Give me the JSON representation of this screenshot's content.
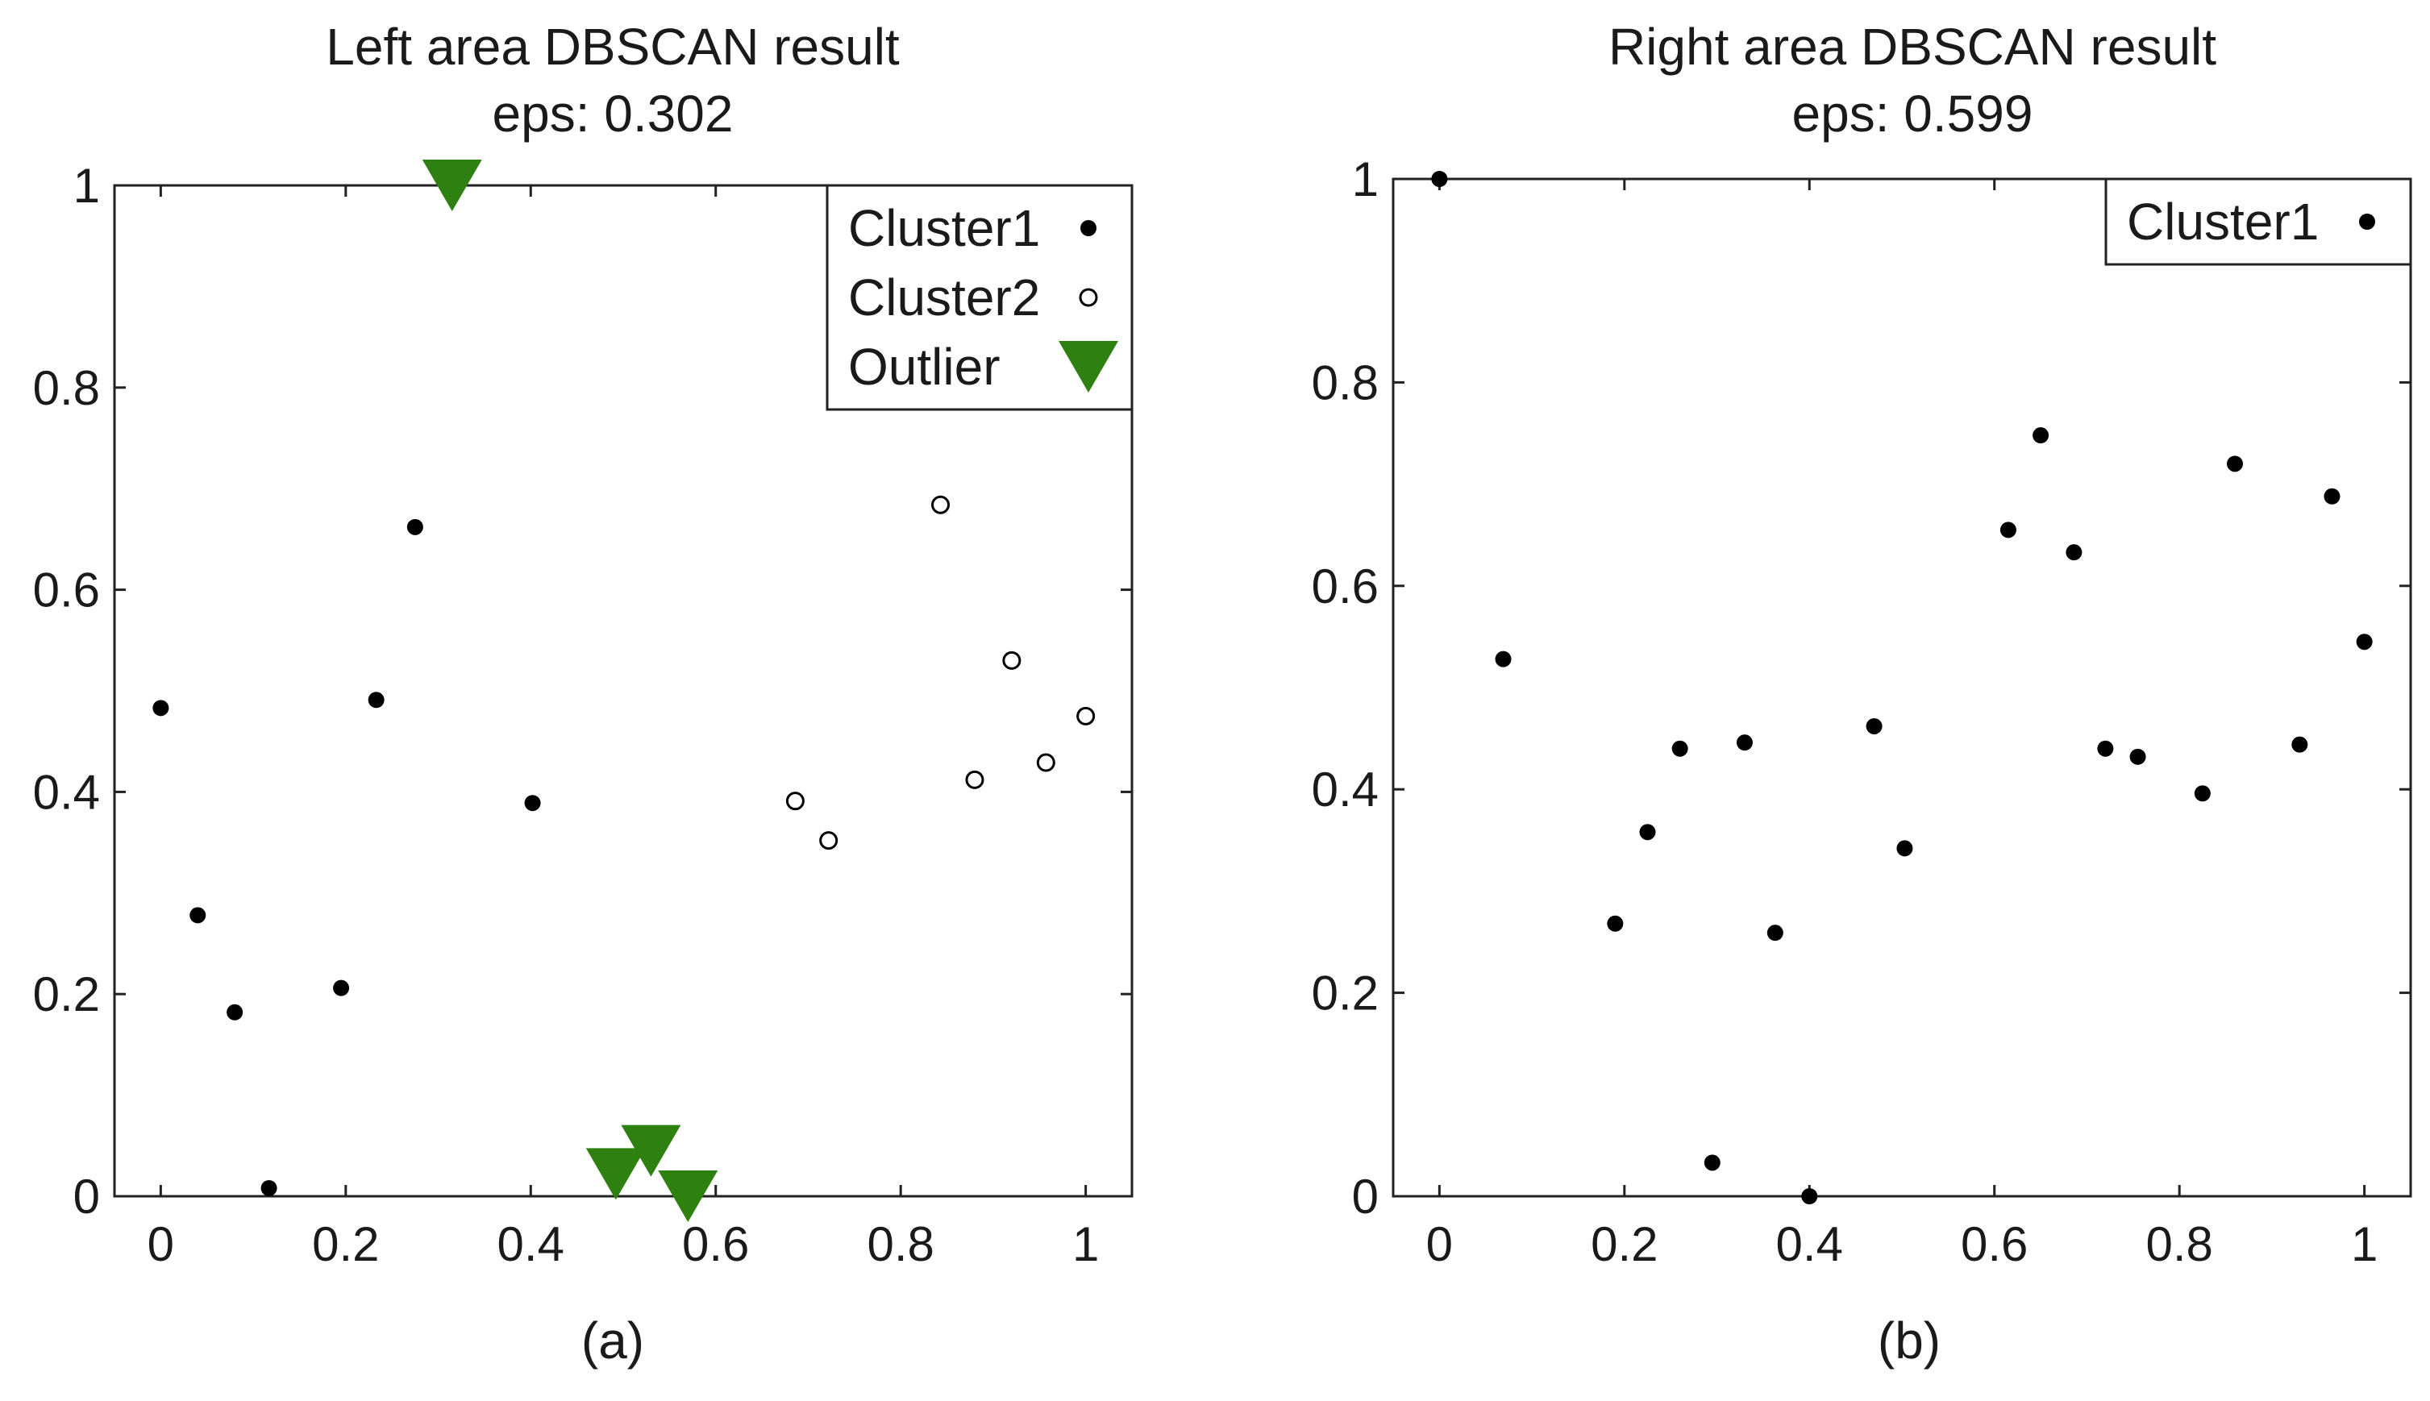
{
  "chart_data": [
    {
      "type": "scatter",
      "title_line1": "Left area DBSCAN result",
      "title_line2": "eps: 0.302",
      "caption": "(a)",
      "xlim": [
        -0.05,
        1.05
      ],
      "ylim": [
        0,
        1
      ],
      "xticks": [
        0,
        0.2,
        0.4,
        0.6,
        0.8,
        1
      ],
      "xtick_labels": [
        "0",
        "0.2",
        "0.4",
        "0.6",
        "0.8",
        "1"
      ],
      "yticks": [
        0,
        0.2,
        0.4,
        0.6,
        0.8,
        1
      ],
      "ytick_labels": [
        "0",
        "0.2",
        "0.4",
        "0.6",
        "0.8",
        "1"
      ],
      "legend_position": "top-right",
      "series": [
        {
          "name": "Cluster1",
          "marker": "filled-circle",
          "color": "#000000",
          "points": [
            [
              0.0,
              0.483
            ],
            [
              0.04,
              0.278
            ],
            [
              0.08,
              0.182
            ],
            [
              0.117,
              0.008
            ],
            [
              0.195,
              0.206
            ],
            [
              0.233,
              0.491
            ],
            [
              0.275,
              0.662
            ],
            [
              0.402,
              0.389
            ]
          ]
        },
        {
          "name": "Cluster2",
          "marker": "open-circle",
          "color": "#000000",
          "points": [
            [
              0.686,
              0.391
            ],
            [
              0.722,
              0.352
            ],
            [
              0.843,
              0.684
            ],
            [
              0.88,
              0.412
            ],
            [
              0.92,
              0.53
            ],
            [
              0.957,
              0.429
            ],
            [
              1.0,
              0.475
            ]
          ]
        },
        {
          "name": "Outlier",
          "marker": "triangle-down",
          "color": "#2e8010",
          "points": [
            [
              0.315,
              1.0
            ],
            [
              0.492,
              0.022
            ],
            [
              0.53,
              0.045
            ],
            [
              0.57,
              0.0
            ]
          ]
        }
      ]
    },
    {
      "type": "scatter",
      "title_line1": "Right area DBSCAN result",
      "title_line2": "eps: 0.599",
      "caption": "(b)",
      "xlim": [
        -0.05,
        1.05
      ],
      "ylim": [
        0,
        1
      ],
      "xticks": [
        0,
        0.2,
        0.4,
        0.6,
        0.8,
        1
      ],
      "xtick_labels": [
        "0",
        "0.2",
        "0.4",
        "0.6",
        "0.8",
        "1"
      ],
      "yticks": [
        0,
        0.2,
        0.4,
        0.6,
        0.8,
        1
      ],
      "ytick_labels": [
        "0",
        "0.2",
        "0.4",
        "0.6",
        "0.8",
        "1"
      ],
      "legend_position": "top-right",
      "series": [
        {
          "name": "Cluster1",
          "marker": "filled-circle",
          "color": "#000000",
          "points": [
            [
              0.0,
              1.0
            ],
            [
              0.069,
              0.528
            ],
            [
              0.19,
              0.268
            ],
            [
              0.225,
              0.358
            ],
            [
              0.26,
              0.44
            ],
            [
              0.295,
              0.033
            ],
            [
              0.33,
              0.446
            ],
            [
              0.363,
              0.259
            ],
            [
              0.4,
              0.0
            ],
            [
              0.47,
              0.462
            ],
            [
              0.503,
              0.342
            ],
            [
              0.615,
              0.655
            ],
            [
              0.65,
              0.748
            ],
            [
              0.686,
              0.633
            ],
            [
              0.72,
              0.44
            ],
            [
              0.755,
              0.432
            ],
            [
              0.825,
              0.396
            ],
            [
              0.86,
              0.72
            ],
            [
              0.93,
              0.444
            ],
            [
              0.965,
              0.688
            ],
            [
              1.0,
              0.545
            ]
          ]
        }
      ]
    }
  ]
}
